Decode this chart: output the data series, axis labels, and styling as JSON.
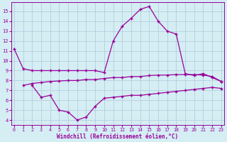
{
  "top_x": [
    0,
    1,
    2,
    3,
    4,
    5,
    6,
    7,
    8,
    9,
    10,
    11,
    12,
    13,
    14,
    15,
    16,
    17,
    18,
    19,
    20,
    21,
    22,
    23
  ],
  "top_y": [
    11.2,
    9.2,
    9.0,
    9.0,
    9.0,
    9.0,
    9.0,
    9.0,
    9.0,
    9.0,
    8.8,
    12.0,
    13.5,
    14.3,
    15.2,
    15.5,
    14.0,
    13.0,
    12.7,
    8.7,
    8.5,
    8.7,
    8.3,
    7.9
  ],
  "mid_x": [
    1,
    2,
    3,
    4,
    5,
    6,
    7,
    8,
    9,
    10,
    11,
    12,
    13,
    14,
    15,
    16,
    17,
    18,
    19,
    20,
    21,
    22,
    23
  ],
  "mid_y": [
    7.5,
    7.7,
    7.8,
    7.9,
    7.95,
    8.0,
    8.0,
    8.1,
    8.1,
    8.2,
    8.3,
    8.3,
    8.4,
    8.4,
    8.5,
    8.55,
    8.55,
    8.6,
    8.6,
    8.6,
    8.55,
    8.4,
    7.9
  ],
  "low_x": [
    2,
    3,
    4,
    5,
    6,
    7,
    8,
    9,
    10,
    11,
    12,
    13,
    14,
    15,
    16,
    17,
    18,
    19,
    20,
    21,
    22,
    23
  ],
  "low_y": [
    7.5,
    6.3,
    6.5,
    5.0,
    4.8,
    4.0,
    4.3,
    5.4,
    6.2,
    6.3,
    6.4,
    6.5,
    6.5,
    6.6,
    6.7,
    6.8,
    6.9,
    7.0,
    7.1,
    7.2,
    7.3,
    7.2
  ],
  "line_color": "#990099",
  "bg_color": "#d4eef4",
  "grid_color": "#b0c8d8",
  "xlabel": "Windchill (Refroidissement éolien,°C)",
  "ylim": [
    3.5,
    15.9
  ],
  "xlim": [
    -0.3,
    23.3
  ],
  "yticks": [
    4,
    5,
    6,
    7,
    8,
    9,
    10,
    11,
    12,
    13,
    14,
    15
  ],
  "xticks": [
    0,
    1,
    2,
    3,
    4,
    5,
    6,
    7,
    8,
    9,
    10,
    11,
    12,
    13,
    14,
    15,
    16,
    17,
    18,
    19,
    20,
    21,
    22,
    23
  ]
}
